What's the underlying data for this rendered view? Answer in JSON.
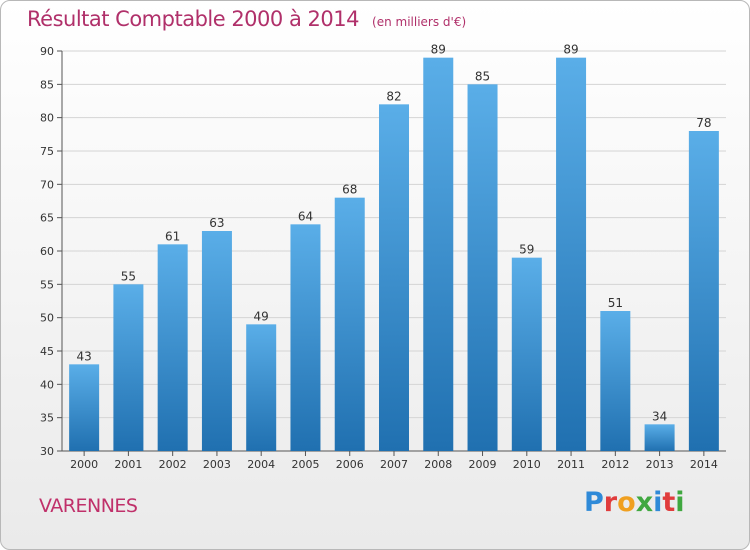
{
  "title": "Résultat Comptable 2000 à 2014",
  "subtitle": "(en milliers d'€)",
  "commune": "VARENNES",
  "logo": {
    "letters": [
      "P",
      "r",
      "o",
      "x",
      "i",
      "t",
      "i"
    ],
    "colors": [
      "#2f8ad8",
      "#e03c3c",
      "#f0a020",
      "#40a840",
      "#2f8ad8",
      "#e03c3c",
      "#40a840"
    ]
  },
  "colors": {
    "bar_top": "#5aaee8",
    "bar_bottom": "#2070b0",
    "title": "#b0306a",
    "axis_text": "#333333"
  },
  "chart_data": {
    "type": "bar",
    "title": "Résultat Comptable 2000 à 2014",
    "subtitle": "(en milliers d'€)",
    "categories": [
      "2000",
      "2001",
      "2002",
      "2003",
      "2004",
      "2005",
      "2006",
      "2007",
      "2008",
      "2009",
      "2010",
      "2011",
      "2012",
      "2013",
      "2014"
    ],
    "values": [
      43,
      55,
      61,
      63,
      49,
      64,
      68,
      82,
      89,
      85,
      59,
      89,
      51,
      34,
      78
    ],
    "ylim": [
      30,
      90
    ],
    "yticks": [
      30,
      35,
      40,
      45,
      50,
      55,
      60,
      65,
      70,
      75,
      80,
      85,
      90
    ],
    "grid": true,
    "legend": "none",
    "data_labels": true
  }
}
